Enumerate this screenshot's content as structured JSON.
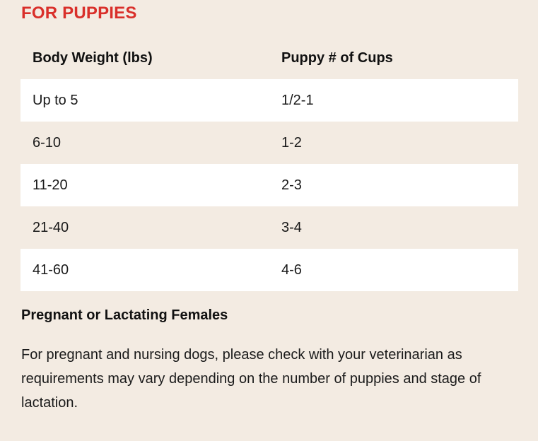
{
  "section": {
    "title": "FOR PUPPIES"
  },
  "table": {
    "headers": [
      "Body Weight (lbs)",
      "Puppy # of Cups"
    ],
    "rows": [
      [
        "Up to 5",
        "1/2-1"
      ],
      [
        "6-10",
        "1-2"
      ],
      [
        "11-20",
        "2-3"
      ],
      [
        "21-40",
        "3-4"
      ],
      [
        "41-60",
        "4-6"
      ]
    ]
  },
  "note": {
    "heading": "Pregnant or Lactating Females",
    "body": "For pregnant and nursing dogs, please check with your veterinarian as requirements may vary depending on the number of puppies and stage of lactation."
  },
  "colors": {
    "background": "#f3ebe2",
    "accent": "#d92f2a",
    "row_highlight": "#ffffff"
  }
}
